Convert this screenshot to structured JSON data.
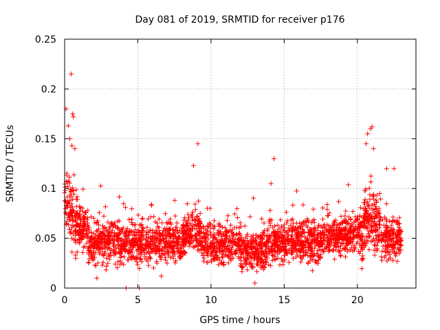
{
  "chart_data": {
    "type": "scatter",
    "title": "Day 081 of 2019, SRMTID for receiver p176",
    "xlabel": "GPS time / hours",
    "ylabel": "SRMTID / TECUs",
    "xlim": [
      0,
      24
    ],
    "ylim": [
      0,
      0.25
    ],
    "xticks": [
      0,
      5,
      10,
      15,
      20
    ],
    "xtick_labels": [
      "0",
      "5",
      "10",
      "15",
      "20"
    ],
    "yticks": [
      0,
      0.05,
      0.1,
      0.15,
      0.2,
      0.25
    ],
    "ytick_labels": [
      "0",
      "0.05",
      "0.1",
      "0.15",
      "0.2",
      "0.25"
    ],
    "grid": true,
    "marker": "+",
    "series": [
      {
        "name": "SRMTID",
        "color": "#ff0000",
        "description": "Dense cloud of ~3000 samples between 0 and 23 h; values mostly 0.02-0.08 TECU, higher near 0-1 h and 20.5-21.5 h.",
        "x_range": [
          0,
          23
        ],
        "outliers": [
          {
            "x": 0.1,
            "y": 0.18
          },
          {
            "x": 0.25,
            "y": 0.163
          },
          {
            "x": 0.45,
            "y": 0.215
          },
          {
            "x": 0.55,
            "y": 0.175
          },
          {
            "x": 0.6,
            "y": 0.172
          },
          {
            "x": 0.5,
            "y": 0.143
          },
          {
            "x": 0.7,
            "y": 0.14
          },
          {
            "x": 0.35,
            "y": 0.15
          },
          {
            "x": 9.1,
            "y": 0.145
          },
          {
            "x": 8.8,
            "y": 0.123
          },
          {
            "x": 14.3,
            "y": 0.13
          },
          {
            "x": 14.1,
            "y": 0.105
          },
          {
            "x": 20.9,
            "y": 0.16
          },
          {
            "x": 21.0,
            "y": 0.162
          },
          {
            "x": 20.7,
            "y": 0.155
          },
          {
            "x": 20.6,
            "y": 0.145
          },
          {
            "x": 21.1,
            "y": 0.14
          },
          {
            "x": 22.0,
            "y": 0.12
          },
          {
            "x": 22.5,
            "y": 0.12
          },
          {
            "x": 2.2,
            "y": 0.01
          },
          {
            "x": 4.2,
            "y": 0.0
          },
          {
            "x": 5.1,
            "y": 0.0
          },
          {
            "x": 13.0,
            "y": 0.005
          },
          {
            "x": 6.6,
            "y": 0.012
          }
        ]
      }
    ]
  }
}
